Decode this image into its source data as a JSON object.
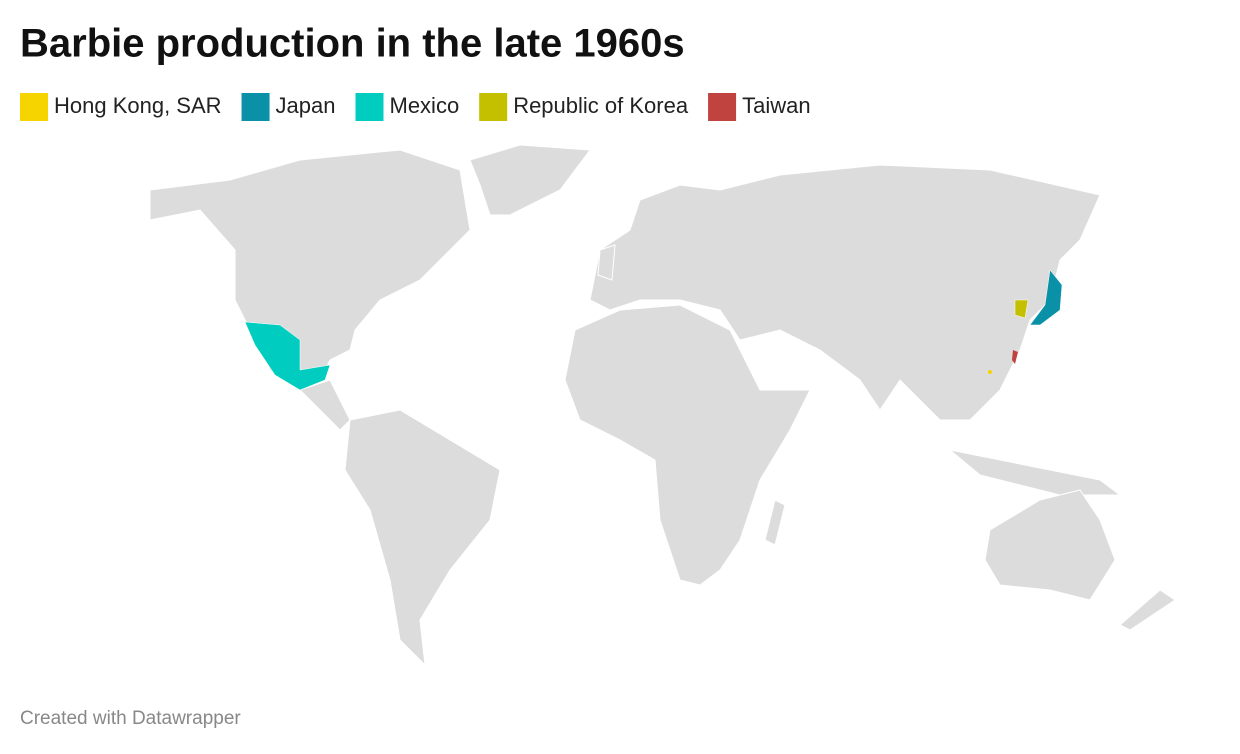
{
  "title": "Barbie production in the late 1960s",
  "legend": [
    {
      "label": "Hong Kong, SAR",
      "color": "#f5d400"
    },
    {
      "label": "Japan",
      "color": "#0a91a8"
    },
    {
      "label": "Mexico",
      "color": "#00cdc0"
    },
    {
      "label": "Republic of Korea",
      "color": "#c4c000"
    },
    {
      "label": "Taiwan",
      "color": "#c0433f"
    }
  ],
  "footer": "Created with Datawrapper"
}
